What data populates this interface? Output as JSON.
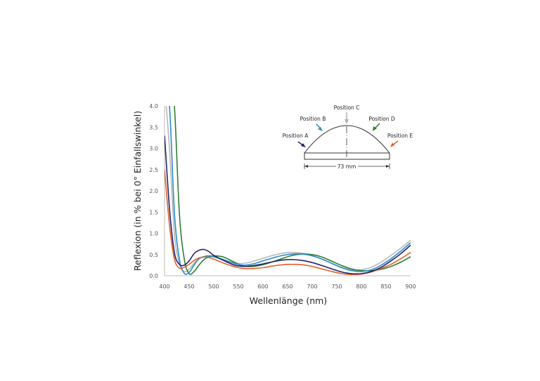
{
  "chart_data": {
    "type": "line",
    "title": "",
    "xlabel": "Wellenlänge  (nm)",
    "ylabel": "Reflexion (in % bei 0° Einfallswinkel)",
    "xlim": [
      400,
      900
    ],
    "ylim": [
      0.0,
      4.0
    ],
    "x_ticks": [
      "400",
      "450",
      "500",
      "550",
      "600",
      "650",
      "700",
      "750",
      "800",
      "850",
      "900"
    ],
    "y_ticks": [
      "0.0",
      "0.5",
      "1.0",
      "1.5",
      "2.0",
      "2.5",
      "3.0",
      "3.5",
      "4.0"
    ],
    "grid": false,
    "legend_position": "inset diagram top-right",
    "x": [
      400,
      410,
      420,
      430,
      440,
      450,
      460,
      470,
      480,
      490,
      500,
      520,
      540,
      560,
      580,
      600,
      620,
      640,
      660,
      680,
      700,
      720,
      740,
      760,
      780,
      800,
      820,
      840,
      860,
      880,
      900
    ],
    "series": [
      {
        "name": "Position A",
        "color": "#1f2270",
        "values": [
          3.3,
          1.6,
          0.55,
          0.27,
          0.25,
          0.35,
          0.52,
          0.6,
          0.62,
          0.57,
          0.48,
          0.36,
          0.26,
          0.22,
          0.24,
          0.28,
          0.33,
          0.37,
          0.38,
          0.36,
          0.31,
          0.24,
          0.16,
          0.09,
          0.05,
          0.05,
          0.1,
          0.2,
          0.35,
          0.52,
          0.72
        ]
      },
      {
        "name": "Position B",
        "color": "#2a8ac6",
        "values": [
          4.5,
          4.0,
          1.5,
          0.4,
          0.06,
          0.08,
          0.25,
          0.4,
          0.45,
          0.47,
          0.45,
          0.38,
          0.3,
          0.25,
          0.28,
          0.35,
          0.42,
          0.48,
          0.51,
          0.51,
          0.47,
          0.39,
          0.29,
          0.19,
          0.12,
          0.1,
          0.14,
          0.25,
          0.4,
          0.58,
          0.78
        ]
      },
      {
        "name": "Position C",
        "color": "#b8b8b8",
        "values": [
          4.5,
          3.0,
          1.0,
          0.3,
          0.1,
          0.15,
          0.3,
          0.4,
          0.45,
          0.46,
          0.44,
          0.37,
          0.3,
          0.29,
          0.34,
          0.41,
          0.48,
          0.53,
          0.55,
          0.53,
          0.48,
          0.39,
          0.29,
          0.2,
          0.14,
          0.14,
          0.2,
          0.32,
          0.48,
          0.65,
          0.84
        ]
      },
      {
        "name": "Position D",
        "color": "#2f7d32",
        "values": [
          4.5,
          4.5,
          4.0,
          1.5,
          0.4,
          0.05,
          0.1,
          0.25,
          0.38,
          0.44,
          0.47,
          0.44,
          0.33,
          0.23,
          0.22,
          0.26,
          0.33,
          0.41,
          0.48,
          0.51,
          0.5,
          0.44,
          0.34,
          0.24,
          0.16,
          0.12,
          0.12,
          0.15,
          0.22,
          0.32,
          0.45
        ]
      },
      {
        "name": "Position E",
        "color": "#e0602a",
        "values": [
          2.5,
          1.2,
          0.4,
          0.18,
          0.2,
          0.27,
          0.36,
          0.42,
          0.44,
          0.43,
          0.39,
          0.3,
          0.22,
          0.17,
          0.17,
          0.19,
          0.23,
          0.26,
          0.27,
          0.26,
          0.22,
          0.16,
          0.1,
          0.05,
          0.03,
          0.04,
          0.09,
          0.17,
          0.27,
          0.4,
          0.55
        ]
      }
    ],
    "annotations": [
      "Position A",
      "Position B",
      "Position C",
      "Position D",
      "Position E",
      "73 mm"
    ]
  },
  "inset": {
    "labels": {
      "a": "Position A",
      "b": "Position B",
      "c": "Position C",
      "d": "Position D",
      "e": "Position E"
    },
    "dimension": "73 mm"
  }
}
